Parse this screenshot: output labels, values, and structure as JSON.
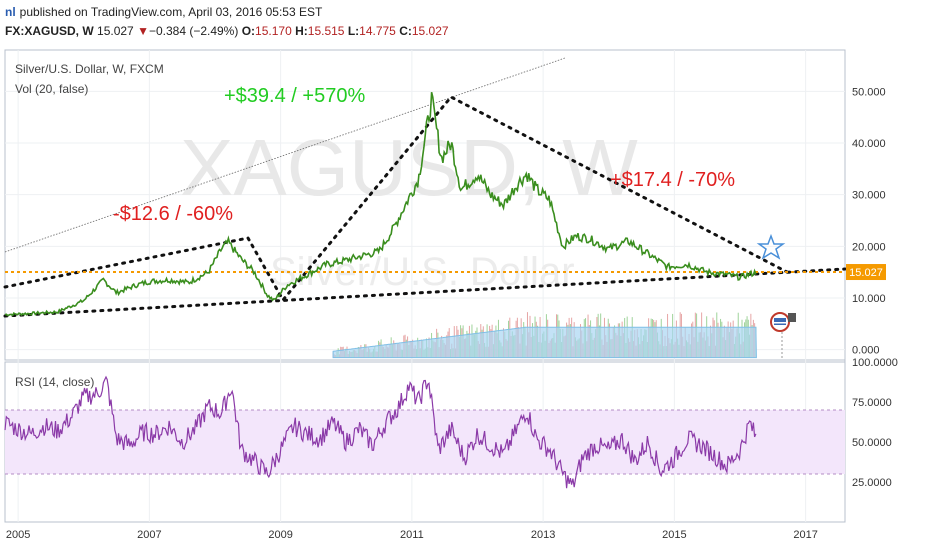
{
  "header": {
    "logo": "nl",
    "published": "published on TradingView.com, April 03, 2016 05:53 EST",
    "symbol": "FX:XAGUSD, W",
    "last": "15.027",
    "change": "−0.384 (−2.49%)",
    "open_label": "O:",
    "open": "15.170",
    "high_label": "H:",
    "high": "15.515",
    "low_label": "L:",
    "low": "14.775",
    "close_label": "C:",
    "close": "15.027"
  },
  "chart_data": [
    {
      "type": "line",
      "title": "Silver/U.S. Dollar, W, FXCM",
      "indicator": "Vol (20, false)",
      "watermark_symbol": "XAGUSD, W",
      "watermark_name": "Silver/U.S. Dollar",
      "x_ticks": [
        "2005",
        "2007",
        "2009",
        "2011",
        "2013",
        "2015",
        "2017"
      ],
      "y_ticks": [
        "50.000",
        "40.000",
        "30.000",
        "20.000",
        "10.000",
        "0.000"
      ],
      "ylim": [
        -2,
        58
      ],
      "last_price_label": "15.027",
      "annotations": [
        "+$39.4 / +570%",
        "-$12.6 / -60%",
        "+$17.4 / -70%"
      ],
      "series": [
        {
          "x": [
            2004.8,
            2005.2,
            2005.6,
            2006.0,
            2006.3,
            2006.5,
            2006.8,
            2007.0,
            2007.3,
            2007.6,
            2007.9,
            2008.1,
            2008.2,
            2008.4,
            2008.6,
            2008.8,
            2008.9,
            2009.1,
            2009.4,
            2009.7,
            2009.9,
            2010.2,
            2010.5,
            2010.7,
            2010.9,
            2011.1,
            2011.3,
            2011.45,
            2011.6,
            2011.75,
            2012.0,
            2012.2,
            2012.4,
            2012.6,
            2012.75,
            2012.9,
            2013.1,
            2013.3,
            2013.5,
            2013.7,
            2014.0,
            2014.3,
            2014.6,
            2014.9,
            2015.2,
            2015.5,
            2015.8,
            2016.0,
            2016.25
          ],
          "values": [
            6.8,
            7.0,
            7.3,
            9.5,
            13.5,
            11.0,
            12.5,
            13.2,
            13.5,
            13.0,
            15.0,
            19.5,
            20.8,
            17.5,
            15.0,
            10.5,
            9.5,
            12.5,
            14.5,
            16.5,
            17.0,
            18.0,
            19.0,
            23.0,
            28.0,
            33.0,
            48.5,
            37.0,
            40.0,
            31.0,
            34.0,
            30.0,
            28.0,
            32.0,
            34.0,
            31.0,
            29.0,
            20.0,
            22.0,
            21.5,
            19.5,
            21.0,
            18.5,
            16.0,
            16.5,
            15.0,
            14.5,
            14.0,
            15.0
          ]
        }
      ]
    },
    {
      "type": "line",
      "title": "RSI (14, close)",
      "y_ticks": [
        "100.0000",
        "75.0000",
        "50.0000",
        "25.0000"
      ],
      "ylim": [
        0,
        100
      ],
      "band": [
        30,
        70
      ],
      "series": [
        {
          "x": [
            2004.8,
            2005.0,
            2005.2,
            2005.4,
            2005.6,
            2005.8,
            2006.0,
            2006.2,
            2006.35,
            2006.5,
            2006.7,
            2006.9,
            2007.1,
            2007.3,
            2007.5,
            2007.7,
            2007.9,
            2008.1,
            2008.25,
            2008.4,
            2008.6,
            2008.8,
            2009.0,
            2009.2,
            2009.4,
            2009.6,
            2009.8,
            2010.0,
            2010.2,
            2010.4,
            2010.6,
            2010.8,
            2010.95,
            2011.1,
            2011.25,
            2011.4,
            2011.6,
            2011.8,
            2012.0,
            2012.2,
            2012.4,
            2012.6,
            2012.75,
            2012.9,
            2013.1,
            2013.3,
            2013.45,
            2013.6,
            2013.8,
            2014.0,
            2014.2,
            2014.4,
            2014.6,
            2014.8,
            2015.0,
            2015.2,
            2015.4,
            2015.6,
            2015.8,
            2016.0,
            2016.15,
            2016.25
          ],
          "values": [
            62,
            58,
            55,
            60,
            57,
            65,
            78,
            80,
            88,
            52,
            48,
            56,
            55,
            60,
            50,
            58,
            72,
            68,
            85,
            45,
            38,
            30,
            45,
            60,
            55,
            52,
            62,
            50,
            58,
            48,
            62,
            72,
            85,
            75,
            90,
            45,
            58,
            40,
            55,
            48,
            42,
            58,
            70,
            52,
            45,
            30,
            22,
            40,
            48,
            45,
            52,
            38,
            50,
            32,
            40,
            52,
            48,
            42,
            35,
            45,
            62,
            52
          ]
        }
      ]
    }
  ]
}
